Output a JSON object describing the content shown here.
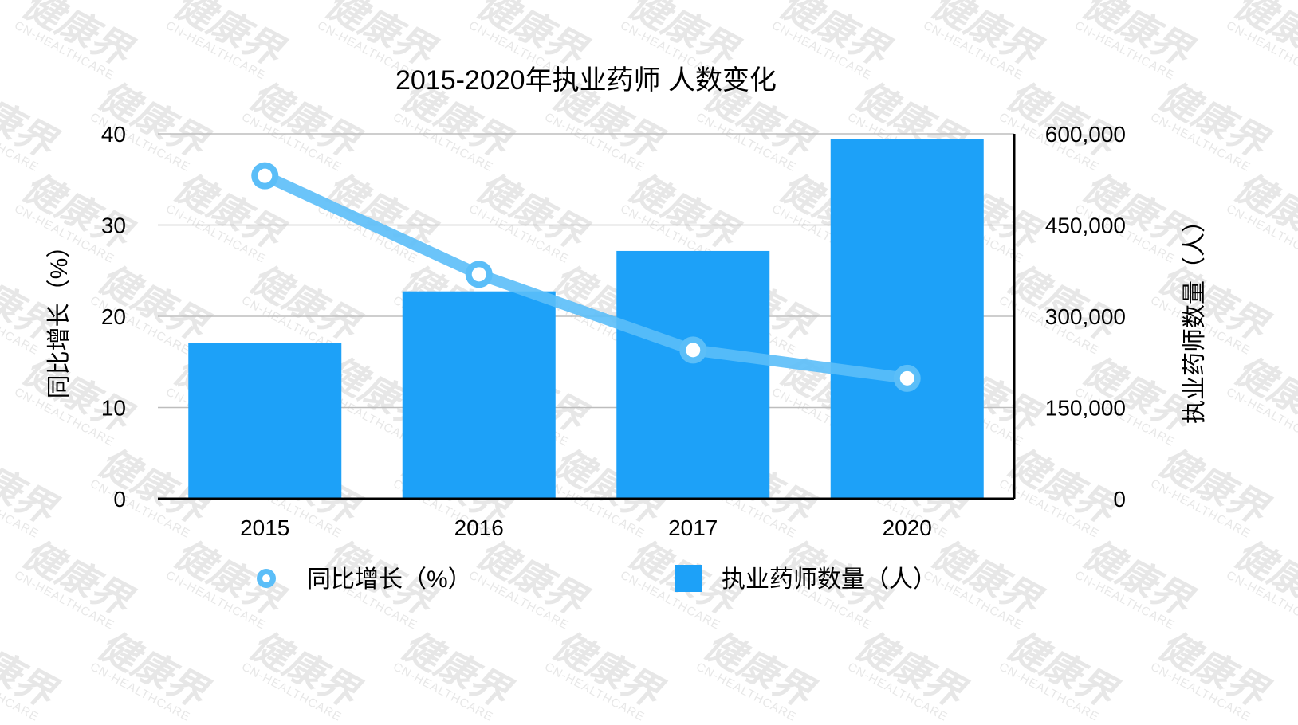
{
  "chart_data": {
    "type": "bar+line",
    "title": "2015-2020年执业药师 人数变化",
    "categories": [
      "2015",
      "2016",
      "2017",
      "2020"
    ],
    "series": [
      {
        "name": "执业药师数量（人）",
        "type": "bar",
        "axis": "right",
        "color": "#1DA1F8",
        "values": [
          256700,
          341000,
          407500,
          592000
        ]
      },
      {
        "name": "同比增长（%）",
        "type": "line",
        "axis": "left",
        "color": "#5BBEF8",
        "values": [
          35.4,
          24.6,
          16.3,
          13.2
        ]
      }
    ],
    "ylabel_left": "同比增长（%）",
    "ylabel_right": "执业药师数量（人）",
    "ylim_left": [
      0,
      40
    ],
    "ylim_right": [
      0,
      600000
    ],
    "yticks_left": [
      "0",
      "10",
      "20",
      "30",
      "40"
    ],
    "yticks_right": [
      "0",
      "150,000",
      "300,000",
      "450,000",
      "600,000"
    ],
    "grid": true,
    "legend_position": "bottom"
  },
  "watermark": {
    "cn": "健康界",
    "en": "CN-HEALTHCARE"
  }
}
